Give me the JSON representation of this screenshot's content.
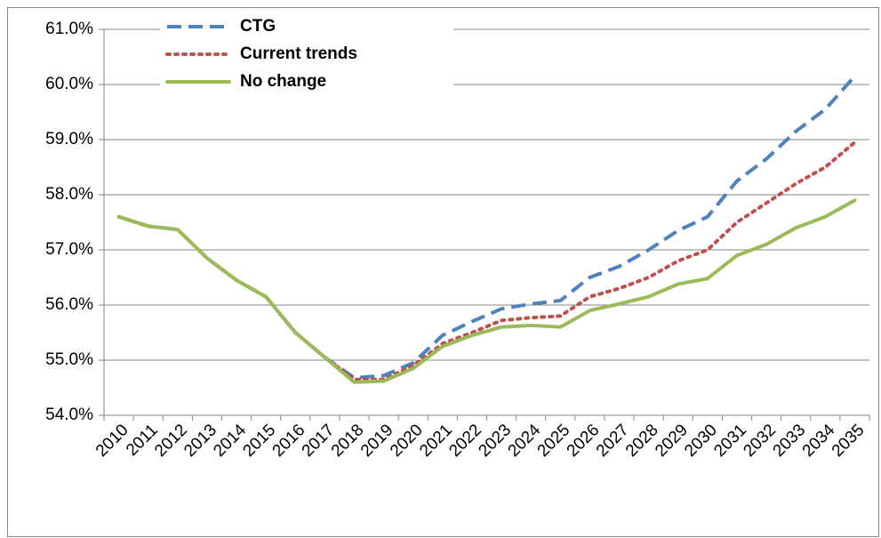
{
  "chart_data": {
    "type": "line",
    "categories": [
      "2010",
      "2011",
      "2012",
      "2013",
      "2014",
      "2015",
      "2016",
      "2017",
      "2018",
      "2019",
      "2020",
      "2021",
      "2022",
      "2023",
      "2024",
      "2025",
      "2026",
      "2027",
      "2028",
      "2029",
      "2030",
      "2031",
      "2032",
      "2033",
      "2034",
      "2035"
    ],
    "series": [
      {
        "name": "CTG",
        "color": "#4f81bd",
        "dash": "dashed",
        "values": [
          57.6,
          57.43,
          57.37,
          56.85,
          56.45,
          56.15,
          55.5,
          55.05,
          54.68,
          54.72,
          54.95,
          55.45,
          55.7,
          55.93,
          56.02,
          56.08,
          56.5,
          56.7,
          57.0,
          57.35,
          57.6,
          58.25,
          58.65,
          59.15,
          59.55,
          60.15
        ]
      },
      {
        "name": "Current trends",
        "color": "#c0504d",
        "dash": "dotted",
        "values": [
          57.6,
          57.43,
          57.37,
          56.85,
          56.45,
          56.15,
          55.5,
          55.05,
          54.65,
          54.65,
          54.9,
          55.3,
          55.5,
          55.72,
          55.77,
          55.8,
          56.15,
          56.3,
          56.5,
          56.8,
          57.0,
          57.5,
          57.85,
          58.2,
          58.5,
          58.95
        ]
      },
      {
        "name": "No change",
        "color": "#9bbb59",
        "dash": "solid",
        "values": [
          57.6,
          57.43,
          57.37,
          56.85,
          56.45,
          56.15,
          55.5,
          55.05,
          54.6,
          54.62,
          54.85,
          55.25,
          55.45,
          55.6,
          55.63,
          55.6,
          55.9,
          56.02,
          56.15,
          56.38,
          56.48,
          56.9,
          57.1,
          57.4,
          57.6,
          57.9
        ]
      }
    ],
    "ylim": [
      54,
      61
    ],
    "yticks": [
      {
        "value": 54,
        "label": "54.0%"
      },
      {
        "value": 55,
        "label": "55.0%"
      },
      {
        "value": 56,
        "label": "56.0%"
      },
      {
        "value": 57,
        "label": "57.0%"
      },
      {
        "value": 58,
        "label": "58.0%"
      },
      {
        "value": 59,
        "label": "59.0%"
      },
      {
        "value": 60,
        "label": "60.0%"
      },
      {
        "value": 61,
        "label": "61.0%"
      }
    ],
    "grid": true,
    "legend": "top-left"
  }
}
